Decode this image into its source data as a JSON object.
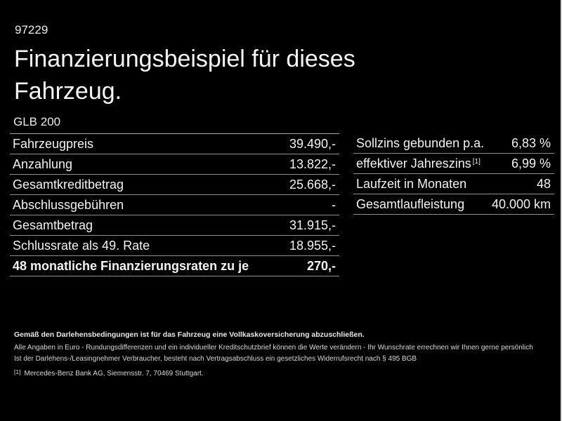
{
  "header": {
    "code": "97229",
    "title": "Finanzierungsbeispiel für dieses Fahrzeug.",
    "model": "GLB 200"
  },
  "finance_table": {
    "rows": [
      {
        "label": "Fahrzeugpreis",
        "value": "39.490,-"
      },
      {
        "label": "Anzahlung",
        "value": "13.822,-"
      },
      {
        "label": "Gesamtkreditbetrag",
        "value": "25.668,-"
      },
      {
        "label": "Abschlussgebühren",
        "value": "-"
      },
      {
        "label": "Gesamtbetrag",
        "value": "31.915,-"
      },
      {
        "label": "Schlussrate als 49. Rate",
        "value": "18.955,-"
      },
      {
        "label": "48 monatliche Finanzierungsraten zu je",
        "value": "270,-"
      }
    ]
  },
  "conditions_table": {
    "rows": [
      {
        "label": "Sollzins gebunden p.a.",
        "value": "6,83 %"
      },
      {
        "label": "effektiver Jahreszins",
        "sup": "[1]",
        "value": "6,99 %"
      },
      {
        "label": "Laufzeit in Monaten",
        "value": "48"
      },
      {
        "label": "Gesamtlaufleistung",
        "value": "40.000 km"
      }
    ]
  },
  "footer": {
    "bold_note": "Gemäß den Darlehensbedingungen ist für das Fahrzeug eine Vollkaskoversicherung abzuschließen.",
    "note_line_1": "Alle Angaben in Euro - Rundungsdifferenzen und ein individueller Kreditschutzbrief können die Werte verändern - Ihr Wunschrate errechnen wir Ihnen gerne persönlich",
    "note_line_2": "Ist der Darlehens-/Leasingnehmer Verbraucher, besteht nach Vertragsabschluss ein gesetzliches Widerrufsrecht nach § 495 BGB",
    "footnote_marker": "[1]",
    "footnote_text": "Mercedes-Benz Bank AG, Siemensstr. 7, 70469 Stuttgart."
  },
  "colors": {
    "background": "#000000",
    "text": "#f2f2f2",
    "separator": "#8f8f8f",
    "table_top_border": "#a6a6a6",
    "edge_strip": "#d9d9d9"
  }
}
